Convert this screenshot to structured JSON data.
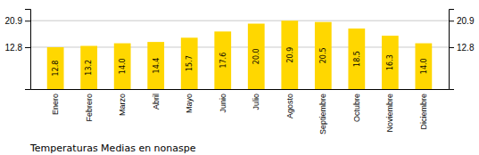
{
  "chart_data": {
    "type": "bar",
    "title": "Temperaturas Medias en nonaspe",
    "categories": [
      "Enero",
      "Febrero",
      "Marzo",
      "Abril",
      "Mayo",
      "Junio",
      "Julio",
      "Agosto",
      "Septiembre",
      "Octubre",
      "Noviembre",
      "Diciembre"
    ],
    "values": [
      12.8,
      13.2,
      14.0,
      14.4,
      15.7,
      17.6,
      20.0,
      20.9,
      20.5,
      18.5,
      16.3,
      14.0
    ],
    "value_labels": [
      "12.8",
      "13.2",
      "14.0",
      "14.4",
      "15.7",
      "17.6",
      "20.0",
      "20.9",
      "20.5",
      "18.5",
      "16.3",
      "14.0"
    ],
    "data_labels": true,
    "color": "#FFD700",
    "ylim": [
      0,
      24.5
    ],
    "yticks": [
      12.8,
      20.9
    ],
    "y2lim": [
      0,
      24.5
    ],
    "y2ticks": [
      12.8,
      20.9
    ],
    "grid": true
  }
}
